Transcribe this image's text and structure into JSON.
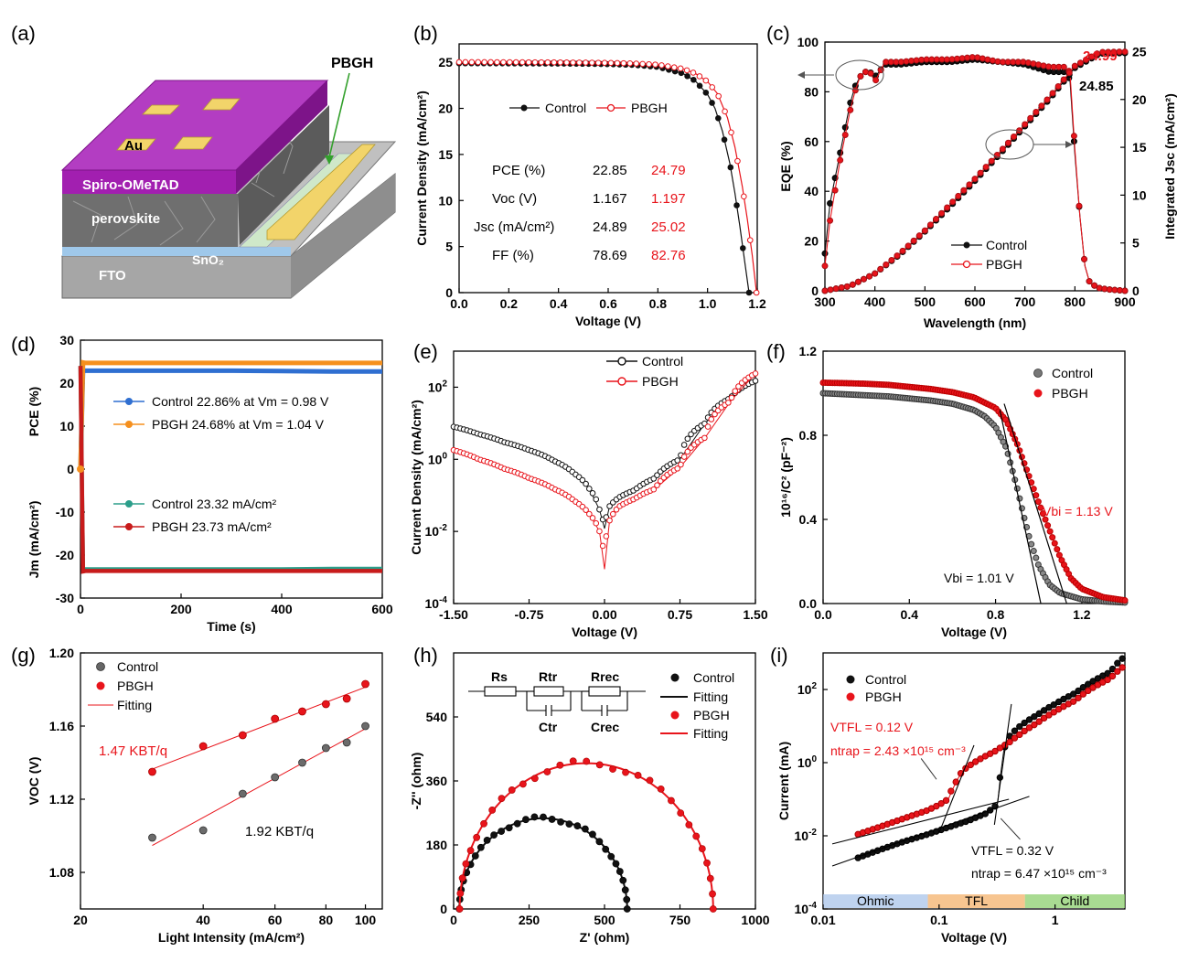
{
  "colors": {
    "control": "#111111",
    "pbgh": "#e8141b",
    "orange": "#f5901e",
    "blue": "#2f6fd1",
    "teal": "#2b9e8a",
    "darkred": "#c81b1b",
    "purple": "#9b2fb0"
  },
  "panels": {
    "a": {
      "label": "(a)",
      "pbgh": "PBGH",
      "au": "Au",
      "spiro": "Spiro-OMeTAD",
      "perovskite": "perovskite",
      "sno2": "SnO₂",
      "fto": "FTO"
    },
    "b": {
      "label": "(b)",
      "xlabel": "Voltage (V)",
      "ylabel": "Current Density (mA/cm²)",
      "legend": [
        "Control",
        "PBGH"
      ],
      "table": {
        "rows": [
          {
            "label": "PCE (%)",
            "control": "22.85",
            "pbgh": "24.79"
          },
          {
            "label": "Voc (V)",
            "control": "1.167",
            "pbgh": "1.197"
          },
          {
            "label": "Jsc (mA/cm²)",
            "control": "24.89",
            "pbgh": "25.02"
          },
          {
            "label": "FF (%)",
            "control": "78.69",
            "pbgh": "82.76"
          }
        ]
      }
    },
    "c": {
      "label": "(c)",
      "xlabel": "Wavelength (nm)",
      "ylabel": "EQE (%)",
      "y2label": "Integrated Jsc (mA/cm²)",
      "legend": [
        "Control",
        "PBGH"
      ],
      "ann_pbgh": "24.99",
      "ann_control": "24.85"
    },
    "d": {
      "label": "(d)",
      "xlabel": "Time (s)",
      "ylabel_top": "PCE (%)",
      "ylabel_bottom": "Jm (mA/cm²)",
      "legend": [
        "Control 22.86% at Vm = 0.98 V",
        "PBGH 24.68% at Vm = 1.04 V",
        "Control 23.32 mA/cm²",
        "PBGH 23.73 mA/cm²"
      ]
    },
    "e": {
      "label": "(e)",
      "xlabel": "Voltage (V)",
      "ylabel": "Current Density (mA/cm²)",
      "legend": [
        "Control",
        "PBGH"
      ]
    },
    "f": {
      "label": "(f)",
      "xlabel": "Voltage (V)",
      "ylabel": "10¹⁶/C² (pF⁻²)",
      "legend": [
        "Control",
        "PBGH"
      ],
      "ann_pbgh": "Vbi = 1.13 V",
      "ann_control": "Vbi = 1.01 V"
    },
    "g": {
      "label": "(g)",
      "xlabel": "Light Intensity (mA/cm²)",
      "ylabel": "VOC (V)",
      "legend": [
        "Control",
        "PBGH",
        "Fitting"
      ],
      "ann_pbgh": "1.47 KBT/q",
      "ann_control": "1.92 KBT/q"
    },
    "h": {
      "label": "(h)",
      "xlabel": "Z' (ohm)",
      "ylabel": "-Z'' (ohm)",
      "legend": [
        "Control",
        "Fitting",
        "PBGH",
        "Fitting"
      ],
      "circuit": [
        "Rs",
        "Rtr",
        "Rrec",
        "Ctr",
        "Crec"
      ]
    },
    "i": {
      "label": "(i)",
      "xlabel": "Voltage (V)",
      "ylabel": "Current (mA)",
      "legend": [
        "Control",
        "PBGH"
      ],
      "ann_pbgh_v": "VTFL = 0.12 V",
      "ann_pbgh_n": "ntrap = 2.43 ×10¹⁵ cm⁻³",
      "ann_control_v": "VTFL = 0.32 V",
      "ann_control_n": "ntrap = 6.47 ×10¹⁵ cm⁻³",
      "regions": [
        "Ohmic",
        "TFL",
        "Child"
      ]
    }
  },
  "chart_data": [
    {
      "panel": "b",
      "type": "line",
      "xlim": [
        0,
        1.2
      ],
      "ylim": [
        0,
        27
      ],
      "xticks": [
        "0.0",
        "0.2",
        "0.4",
        "0.6",
        "0.8",
        "1.0",
        "1.2"
      ],
      "yticks": [
        "0",
        "5",
        "10",
        "15",
        "20",
        "25"
      ],
      "series": [
        {
          "name": "Control",
          "x": [
            0,
            0.1,
            0.2,
            0.3,
            0.4,
            0.5,
            0.6,
            0.7,
            0.8,
            0.9,
            0.95,
            1.0,
            1.03,
            1.06,
            1.09,
            1.11,
            1.13,
            1.15,
            1.167
          ],
          "y": [
            24.89,
            24.89,
            24.88,
            24.87,
            24.86,
            24.84,
            24.8,
            24.72,
            24.5,
            23.8,
            23.0,
            21.5,
            20.0,
            17.5,
            14.0,
            10.8,
            7.2,
            3.3,
            0
          ]
        },
        {
          "name": "PBGH",
          "x": [
            0,
            0.1,
            0.2,
            0.3,
            0.4,
            0.5,
            0.6,
            0.7,
            0.8,
            0.9,
            0.95,
            1.0,
            1.04,
            1.08,
            1.11,
            1.14,
            1.16,
            1.18,
            1.197
          ],
          "y": [
            25.02,
            25.02,
            25.01,
            25.0,
            24.99,
            24.97,
            24.94,
            24.88,
            24.74,
            24.3,
            23.8,
            22.9,
            21.6,
            19.0,
            15.8,
            11.5,
            8.0,
            4.0,
            0
          ]
        }
      ]
    },
    {
      "panel": "c",
      "type": "line",
      "xlim": [
        300,
        900
      ],
      "ylim": [
        0,
        100
      ],
      "y2lim": [
        0,
        26
      ],
      "xticks": [
        "300",
        "400",
        "500",
        "600",
        "700",
        "800",
        "900"
      ],
      "yticks": [
        "0",
        "20",
        "40",
        "60",
        "80",
        "100"
      ],
      "y2ticks": [
        "0",
        "5",
        "10",
        "15",
        "20",
        "25"
      ],
      "series": [
        {
          "name": "Control EQE",
          "x": [
            300,
            310,
            320,
            330,
            340,
            350,
            360,
            370,
            380,
            390,
            400,
            420,
            450,
            500,
            550,
            600,
            650,
            700,
            750,
            780,
            790,
            800,
            810,
            820,
            830,
            850,
            870,
            900
          ],
          "y": [
            15,
            35,
            45,
            55,
            65,
            75,
            82,
            86,
            88,
            88,
            86,
            91,
            91,
            92,
            92,
            93,
            92,
            91,
            88,
            88,
            85,
            55,
            30,
            10,
            3,
            1,
            0.5,
            0
          ]
        },
        {
          "name": "PBGH EQE",
          "x": [
            300,
            310,
            320,
            330,
            340,
            350,
            360,
            370,
            380,
            390,
            400,
            420,
            450,
            500,
            550,
            600,
            650,
            700,
            750,
            780,
            790,
            800,
            810,
            820,
            830,
            850,
            870,
            900
          ],
          "y": [
            10,
            28,
            40,
            52,
            62,
            72,
            80,
            86,
            88,
            88,
            84,
            92,
            92,
            93,
            93,
            94,
            92,
            92,
            90,
            90,
            88,
            57,
            30,
            10,
            3,
            1,
            0.5,
            0
          ]
        },
        {
          "name": "Control Integrated Jsc",
          "x": [
            300,
            350,
            400,
            450,
            500,
            550,
            600,
            650,
            700,
            750,
            800,
            850,
            900
          ],
          "y": [
            0,
            0.5,
            1.8,
            3.8,
            6.2,
            8.8,
            11.5,
            14.3,
            17.2,
            20.1,
            23.3,
            24.8,
            24.85
          ]
        },
        {
          "name": "PBGH Integrated Jsc",
          "x": [
            300,
            350,
            400,
            450,
            500,
            550,
            600,
            650,
            700,
            750,
            800,
            850,
            900
          ],
          "y": [
            0,
            0.5,
            1.8,
            3.9,
            6.3,
            9.0,
            11.7,
            14.5,
            17.4,
            20.3,
            23.5,
            24.95,
            24.99
          ]
        }
      ]
    },
    {
      "panel": "d",
      "type": "line",
      "xlim": [
        0,
        600
      ],
      "ylim": [
        -30,
        30
      ],
      "xticks": [
        "0",
        "200",
        "400",
        "600"
      ],
      "yticks": [
        "-30",
        "-20",
        "-10",
        "0",
        "10",
        "20",
        "30"
      ],
      "series": [
        {
          "name": "Control PCE",
          "x": [
            0,
            5,
            10,
            100,
            200,
            300,
            400,
            500,
            600
          ],
          "y": [
            0,
            23,
            22.9,
            22.9,
            22.9,
            22.9,
            22.8,
            22.7,
            22.7
          ]
        },
        {
          "name": "PBGH PCE",
          "x": [
            0,
            5,
            10,
            100,
            200,
            300,
            400,
            500,
            600
          ],
          "y": [
            0,
            24.8,
            24.7,
            24.7,
            24.7,
            24.7,
            24.7,
            24.7,
            24.7
          ]
        },
        {
          "name": "Control Jm",
          "x": [
            0,
            5,
            10,
            100,
            200,
            300,
            400,
            500,
            600
          ],
          "y": [
            24,
            -23.3,
            -23.3,
            -23.3,
            -23.3,
            -23.3,
            -23.3,
            -23.2,
            -23.2
          ]
        },
        {
          "name": "PBGH Jm",
          "x": [
            0,
            5,
            10,
            100,
            200,
            300,
            400,
            500,
            600
          ],
          "y": [
            24,
            -23.8,
            -23.7,
            -23.7,
            -23.7,
            -23.7,
            -23.7,
            -23.7,
            -23.7
          ]
        }
      ]
    },
    {
      "panel": "e",
      "type": "line",
      "xlim": [
        -1.5,
        1.5
      ],
      "ylog": true,
      "ylim": [
        0.0001,
        1000
      ],
      "xticks": [
        "-1.50",
        "-0.75",
        "0.00",
        "0.75",
        "1.50"
      ],
      "yticks": [
        "10-4",
        "10-2",
        "100",
        "102"
      ],
      "series": [
        {
          "name": "Control",
          "x": [
            -1.5,
            -1.25,
            -1.0,
            -0.75,
            -0.5,
            -0.3,
            -0.15,
            -0.05,
            0,
            0.05,
            0.15,
            0.3,
            0.5,
            0.75,
            1.0,
            1.25,
            1.5
          ],
          "y": [
            8,
            5,
            3,
            1.8,
            0.9,
            0.4,
            0.15,
            0.04,
            0.012,
            0.05,
            0.09,
            0.14,
            0.3,
            1.0,
            10,
            50,
            150
          ]
        },
        {
          "name": "PBGH",
          "x": [
            -1.5,
            -1.25,
            -1.0,
            -0.75,
            -0.5,
            -0.3,
            -0.15,
            -0.05,
            0,
            0.05,
            0.15,
            0.3,
            0.5,
            0.75,
            1.0,
            1.25,
            1.5
          ],
          "y": [
            1.8,
            1.0,
            0.55,
            0.3,
            0.15,
            0.07,
            0.03,
            0.01,
            0.0009,
            0.02,
            0.05,
            0.08,
            0.15,
            0.6,
            4,
            40,
            240
          ]
        }
      ]
    },
    {
      "panel": "f",
      "type": "scatter",
      "xlim": [
        0,
        1.4
      ],
      "ylim": [
        0,
        1.2
      ],
      "xticks": [
        "0.0",
        "0.4",
        "0.8",
        "1.2"
      ],
      "yticks": [
        "0.0",
        "0.4",
        "0.8",
        "1.2"
      ],
      "series": [
        {
          "name": "Control",
          "x": [
            0,
            0.1,
            0.2,
            0.3,
            0.4,
            0.5,
            0.6,
            0.7,
            0.75,
            0.8,
            0.85,
            0.9,
            0.93,
            0.96,
            1.0,
            1.05,
            1.1,
            1.2,
            1.3,
            1.4
          ],
          "y": [
            1.0,
            0.995,
            0.99,
            0.985,
            0.975,
            0.965,
            0.95,
            0.92,
            0.89,
            0.84,
            0.74,
            0.55,
            0.42,
            0.3,
            0.18,
            0.09,
            0.05,
            0.02,
            0.01,
            0.005
          ]
        },
        {
          "name": "PBGH",
          "x": [
            0,
            0.1,
            0.2,
            0.3,
            0.4,
            0.5,
            0.6,
            0.7,
            0.8,
            0.85,
            0.9,
            0.95,
            1.0,
            1.05,
            1.1,
            1.15,
            1.2,
            1.3,
            1.4
          ],
          "y": [
            1.05,
            1.048,
            1.045,
            1.04,
            1.03,
            1.02,
            1.005,
            0.98,
            0.93,
            0.87,
            0.76,
            0.62,
            0.48,
            0.35,
            0.22,
            0.12,
            0.07,
            0.03,
            0.015
          ]
        }
      ]
    },
    {
      "panel": "g",
      "type": "scatter",
      "xlog": true,
      "xlim": [
        20,
        110
      ],
      "ylim": [
        1.06,
        1.2
      ],
      "xticks": [
        "20",
        "40",
        "60",
        "80",
        "100"
      ],
      "yticks": [
        "1.08",
        "1.12",
        "1.16",
        "1.20"
      ],
      "series": [
        {
          "name": "Control",
          "x": [
            30,
            40,
            50,
            60,
            70,
            80,
            90,
            100
          ],
          "y": [
            1.099,
            1.103,
            1.123,
            1.132,
            1.14,
            1.148,
            1.151,
            1.16
          ]
        },
        {
          "name": "PBGH",
          "x": [
            30,
            40,
            50,
            60,
            70,
            80,
            90,
            100
          ],
          "y": [
            1.135,
            1.149,
            1.155,
            1.164,
            1.168,
            1.172,
            1.175,
            1.183
          ]
        }
      ]
    },
    {
      "panel": "h",
      "type": "scatter",
      "xlim": [
        0,
        1000
      ],
      "ylim": [
        0,
        720
      ],
      "xticks": [
        "0",
        "250",
        "500",
        "750",
        "1000"
      ],
      "yticks": [
        "0",
        "180",
        "360",
        "540"
      ],
      "series": [
        {
          "name": "Control",
          "center": 297,
          "radius": 278,
          "height": 255,
          "x_start": 20,
          "x_end": 575
        },
        {
          "name": "PBGH",
          "center": 440,
          "radius": 420,
          "height": 410,
          "x_start": 20,
          "x_end": 860
        }
      ]
    },
    {
      "panel": "i",
      "type": "scatter",
      "xlog": true,
      "ylog": true,
      "xlim": [
        0.01,
        4
      ],
      "ylim": [
        0.0001,
        1000
      ],
      "xticks": [
        "0.01",
        "0.1",
        "1"
      ],
      "yticks": [
        "10-4",
        "10-2",
        "100",
        "102"
      ],
      "series": [
        {
          "name": "Control",
          "x": [
            0.02,
            0.03,
            0.05,
            0.08,
            0.12,
            0.18,
            0.25,
            0.3,
            0.32,
            0.34,
            0.36,
            0.4,
            0.5,
            0.7,
            1.0,
            1.5,
            2.0,
            3.0,
            3.8
          ],
          "y": [
            0.0025,
            0.004,
            0.007,
            0.011,
            0.017,
            0.026,
            0.04,
            0.06,
            0.08,
            0.5,
            2,
            5,
            10,
            20,
            40,
            80,
            150,
            300,
            700
          ]
        },
        {
          "name": "PBGH",
          "x": [
            0.02,
            0.03,
            0.05,
            0.08,
            0.1,
            0.12,
            0.14,
            0.16,
            0.2,
            0.3,
            0.4,
            0.5,
            0.7,
            1.0,
            1.5,
            2.0,
            3.0,
            3.8
          ],
          "y": [
            0.011,
            0.017,
            0.03,
            0.05,
            0.07,
            0.1,
            0.3,
            0.6,
            1.0,
            2.0,
            3.5,
            6,
            12,
            25,
            50,
            100,
            200,
            400
          ]
        }
      ]
    }
  ]
}
